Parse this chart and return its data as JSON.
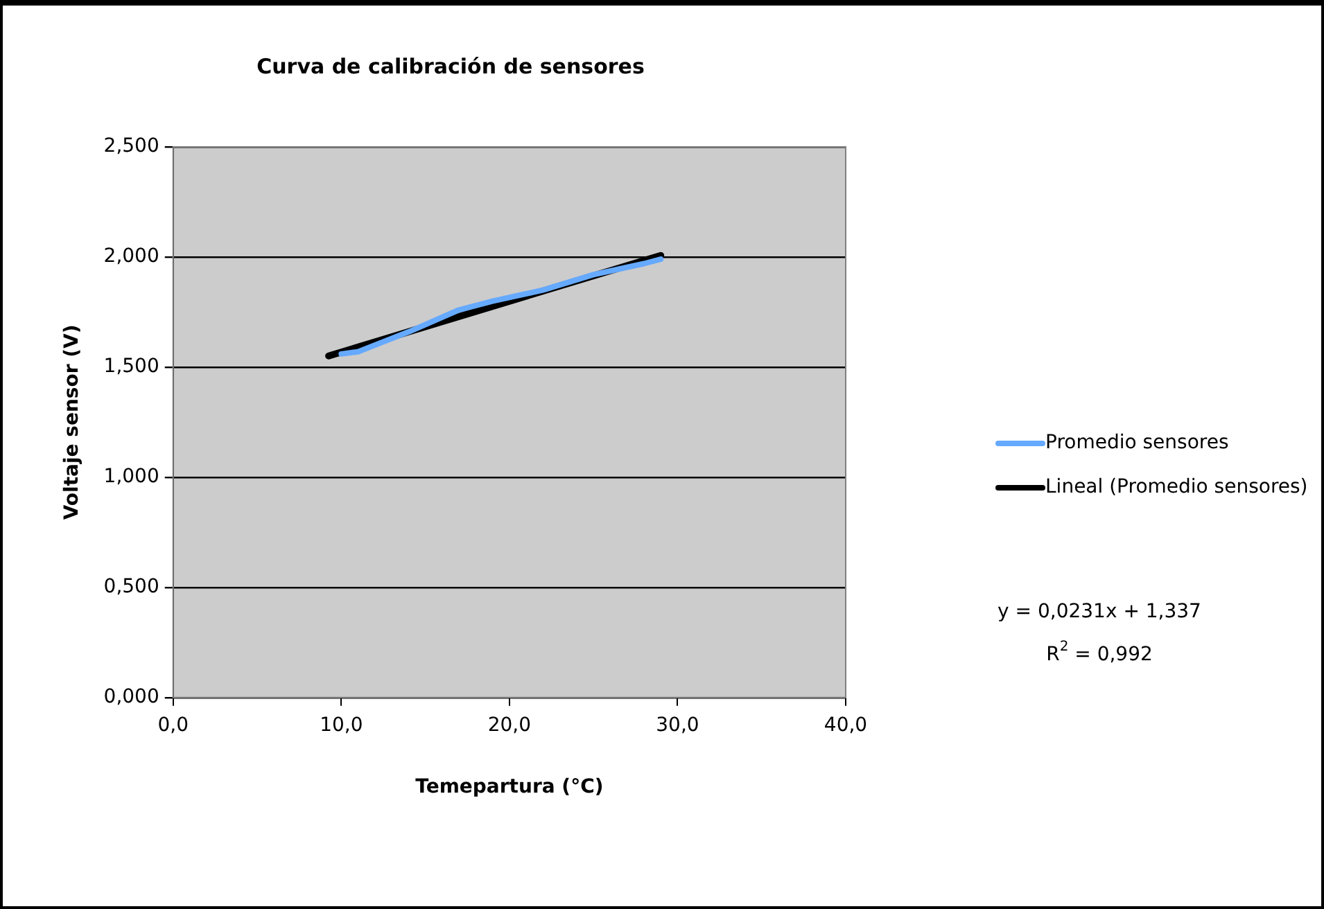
{
  "chart_data": {
    "type": "line",
    "title": "Curva de calibración de sensores",
    "xlabel": "Temepartura (°C)",
    "ylabel": "Voltaje sensor (V)",
    "series": [
      {
        "name": "Promedio sensores",
        "color": "#66aaff",
        "x": [
          10.0,
          11.0,
          14.0,
          17.0,
          19.0,
          22.0,
          25.0,
          28.0,
          29.0
        ],
        "values": [
          1.56,
          1.57,
          1.66,
          1.76,
          1.8,
          1.85,
          1.92,
          1.97,
          1.99
        ]
      },
      {
        "name": "Lineal (Promedio sensores)",
        "type": "line",
        "color": "#000000",
        "x": [
          9.25,
          29.0
        ],
        "values": [
          1.551,
          2.007
        ]
      }
    ],
    "xlim": [
      0,
      40
    ],
    "xticks": [
      {
        "value": 0,
        "label": "0,0"
      },
      {
        "value": 10,
        "label": "10,0"
      },
      {
        "value": 20,
        "label": "20,0"
      },
      {
        "value": 30,
        "label": "30,0"
      },
      {
        "value": 40,
        "label": "40,0"
      }
    ],
    "ylim": [
      0,
      2.5
    ],
    "yticks": [
      {
        "value": 0,
        "label": "0,000"
      },
      {
        "value": 0.5,
        "label": "0,500"
      },
      {
        "value": 1,
        "label": "1,000"
      },
      {
        "value": 1.5,
        "label": "1,500"
      },
      {
        "value": 2,
        "label": "2,000"
      },
      {
        "value": 2.5,
        "label": "2,500"
      }
    ],
    "grid": "y",
    "legend": "right",
    "marker": "none",
    "annotations": [
      "y = 0,0231x + 1,337",
      "R$^{2}$ = 0,992"
    ]
  }
}
